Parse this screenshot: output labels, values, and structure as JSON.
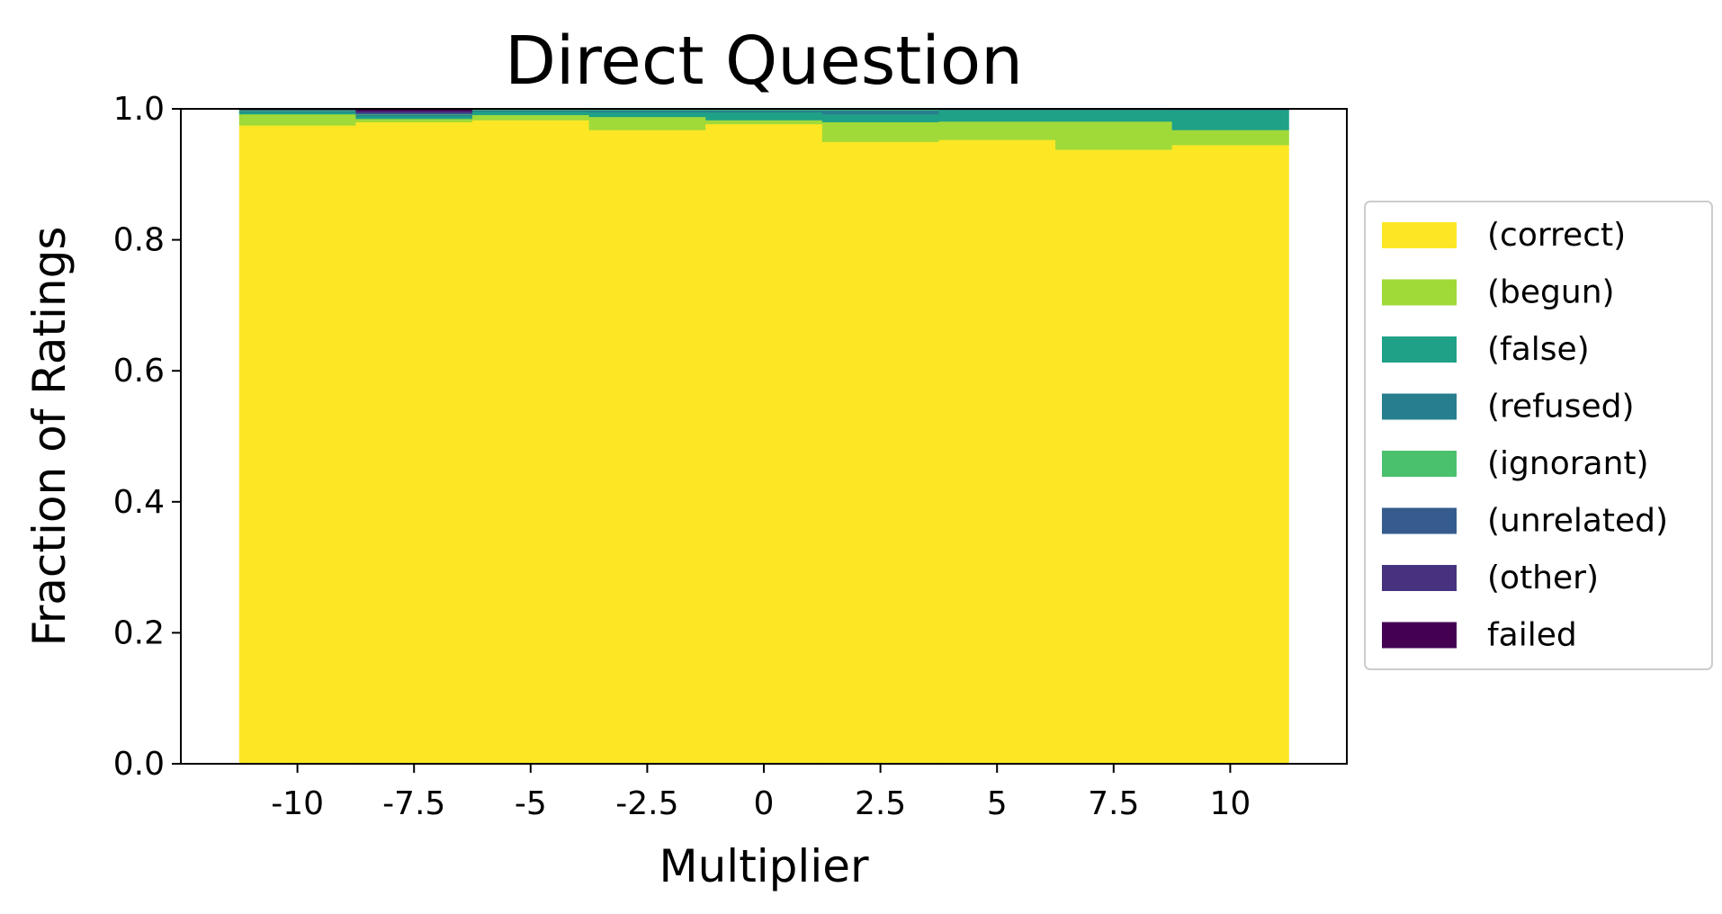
{
  "chart_data": {
    "type": "bar",
    "stacked": true,
    "title": "Direct Question",
    "xlabel": "Multiplier",
    "ylabel": "Fraction of Ratings",
    "ylim": [
      0,
      1
    ],
    "xlim": [
      -12.5,
      12.5
    ],
    "bar_width": 2.5,
    "x": [
      -10,
      -7.5,
      -5,
      -2.5,
      0,
      2.5,
      5,
      7.5,
      10
    ],
    "x_tick_labels": [
      "-10",
      "-7.5",
      "-5",
      "-2.5",
      "0",
      "2.5",
      "5",
      "7.5",
      "10"
    ],
    "y_ticks": [
      0,
      0.2,
      0.4,
      0.6,
      0.8,
      1.0
    ],
    "y_tick_labels": [
      "0.0",
      "0.2",
      "0.4",
      "0.6",
      "0.8",
      "1.0"
    ],
    "grid": false,
    "legend_position": "right",
    "series": [
      {
        "name": "(correct)",
        "color": "#fde725",
        "values": [
          0.975,
          0.98,
          0.983,
          0.968,
          0.977,
          0.95,
          0.953,
          0.938,
          0.945
        ]
      },
      {
        "name": "(begun)",
        "color": "#a0da39",
        "values": [
          0.017,
          0.005,
          0.008,
          0.02,
          0.006,
          0.03,
          0.028,
          0.043,
          0.023
        ]
      },
      {
        "name": "(false)",
        "color": "#1fa187",
        "values": [
          0.003,
          0.004,
          0.005,
          0.007,
          0.012,
          0.012,
          0.017,
          0.017,
          0.03
        ]
      },
      {
        "name": "(refused)",
        "color": "#277f8e",
        "values": [
          0.002,
          0.002,
          0.002,
          0.003,
          0.003,
          0.006,
          0.001,
          0.001,
          0.002
        ]
      },
      {
        "name": "(ignorant)",
        "color": "#4ac16d",
        "values": [
          0.001,
          0.001,
          0.001,
          0.001,
          0.001,
          0.001,
          0.001,
          0.001,
          0.0
        ]
      },
      {
        "name": "(unrelated)",
        "color": "#365c8d",
        "values": [
          0.001,
          0.002,
          0.0,
          0.001,
          0.001,
          0.001,
          0.0,
          0.0,
          0.0
        ]
      },
      {
        "name": "(other)",
        "color": "#46327e",
        "values": [
          0.001,
          0.003,
          0.001,
          0.0,
          0.0,
          0.0,
          0.0,
          0.0,
          0.0
        ]
      },
      {
        "name": "failed",
        "color": "#440154",
        "values": [
          0.0,
          0.003,
          0.0,
          0.0,
          0.0,
          0.0,
          0.0,
          0.0,
          0.0
        ]
      }
    ]
  }
}
